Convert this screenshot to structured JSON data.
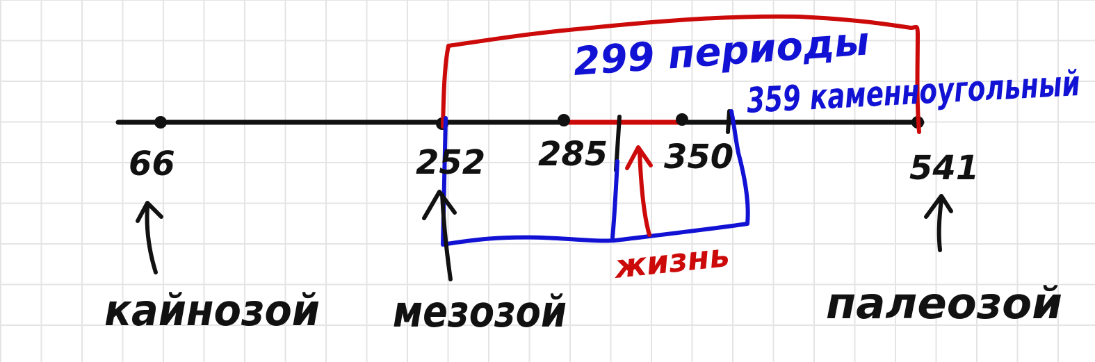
{
  "timeline": {
    "ticks": [
      {
        "value": "66"
      },
      {
        "value": "252"
      },
      {
        "value": "285"
      },
      {
        "value": "350"
      },
      {
        "value": "541"
      }
    ],
    "eras": [
      {
        "label": "кайнозой"
      },
      {
        "label": "мезозой"
      },
      {
        "label": "палеозой"
      }
    ]
  },
  "annotations": {
    "blue_top": "299 периоды",
    "blue_span": "359 каменноугольный",
    "red_bottom": "жизнь"
  },
  "colors": {
    "axis": "#111111",
    "blue": "#1212d4",
    "red": "#cc0a0a",
    "grid": "#e4e4e4"
  }
}
